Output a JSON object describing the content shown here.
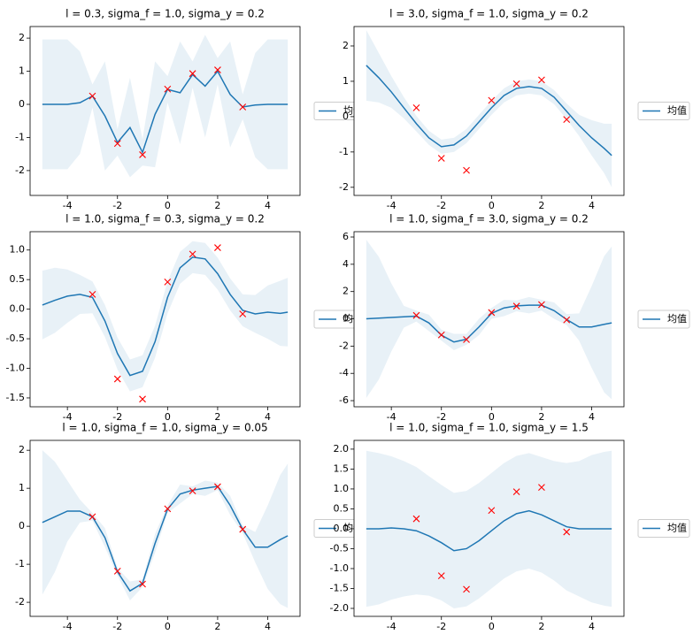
{
  "chart_data": [
    {
      "type": "line",
      "title": "l = 0.3, sigma_f = 1.0, sigma_y = 0.2",
      "x": [
        -5,
        -4.5,
        -4,
        -3.5,
        -3,
        -2.5,
        -2,
        -1.5,
        -1,
        -0.5,
        0,
        0.5,
        1,
        1.5,
        2,
        2.5,
        3,
        3.5,
        4,
        4.5,
        4.8
      ],
      "series": [
        {
          "name": "均值",
          "color": "#1f77b4",
          "values": [
            0,
            0,
            0,
            0.05,
            0.25,
            -0.35,
            -1.15,
            -0.7,
            -1.45,
            -0.3,
            0.45,
            0.35,
            0.9,
            0.55,
            1.0,
            0.3,
            -0.08,
            -0.02,
            0,
            0,
            0
          ]
        }
      ],
      "band": {
        "color": "#1f77b4",
        "upper": [
          1.96,
          1.96,
          1.96,
          1.6,
          0.6,
          1.3,
          -0.75,
          0.8,
          -1.05,
          1.3,
          0.85,
          1.9,
          1.3,
          2.1,
          1.4,
          1.9,
          0.3,
          1.55,
          1.96,
          1.96,
          1.96
        ],
        "lower": [
          -1.96,
          -1.96,
          -1.96,
          -1.5,
          -0.1,
          -2.0,
          -1.55,
          -2.2,
          -1.85,
          -1.9,
          0.05,
          -1.2,
          0.5,
          -1.0,
          0.6,
          -1.3,
          -0.45,
          -1.6,
          -1.96,
          -1.96,
          -1.96
        ]
      },
      "points": {
        "color": "#ff0000",
        "x": [
          -3,
          -2,
          -1,
          0,
          1,
          2,
          3
        ],
        "values": [
          0.25,
          -1.18,
          -1.52,
          0.46,
          0.93,
          1.04,
          -0.08
        ]
      },
      "xlim": [
        -5.49,
        5.29
      ],
      "ylim": [
        -2.75,
        2.35
      ],
      "xticks": [
        -4,
        -2,
        0,
        2,
        4
      ],
      "yticks": [
        -2,
        -1,
        0,
        1,
        2
      ],
      "legend": "outside-right"
    },
    {
      "type": "line",
      "title": "l = 3.0, sigma_f = 1.0, sigma_y = 0.2",
      "x": [
        -5,
        -4.5,
        -4,
        -3.5,
        -3,
        -2.5,
        -2,
        -1.5,
        -1,
        -0.5,
        0,
        0.5,
        1,
        1.5,
        2,
        2.5,
        3,
        3.5,
        4,
        4.5,
        4.8
      ],
      "series": [
        {
          "name": "均值",
          "color": "#1f77b4",
          "values": [
            1.45,
            1.1,
            0.7,
            0.25,
            -0.2,
            -0.6,
            -0.85,
            -0.8,
            -0.55,
            -0.15,
            0.25,
            0.6,
            0.8,
            0.85,
            0.8,
            0.55,
            0.15,
            -0.25,
            -0.6,
            -0.9,
            -1.1
          ]
        }
      ],
      "band": {
        "color": "#1f77b4",
        "upper": [
          2.45,
          1.8,
          1.15,
          0.55,
          0.02,
          -0.4,
          -0.65,
          -0.6,
          -0.35,
          0.05,
          0.45,
          0.8,
          1.0,
          1.05,
          1.0,
          0.75,
          0.37,
          0.05,
          -0.1,
          -0.2,
          -0.2
        ],
        "lower": [
          0.45,
          0.4,
          0.25,
          -0.05,
          -0.42,
          -0.8,
          -1.05,
          -1.0,
          -0.75,
          -0.35,
          0.05,
          0.4,
          0.6,
          0.65,
          0.6,
          0.35,
          -0.07,
          -0.55,
          -1.1,
          -1.6,
          -2.0
        ]
      },
      "points": {
        "color": "#ff0000",
        "x": [
          -3,
          -2,
          -1,
          0,
          1,
          2,
          3
        ],
        "values": [
          0.25,
          -1.18,
          -1.52,
          0.46,
          0.93,
          1.04,
          -0.08
        ]
      },
      "xlim": [
        -5.49,
        5.29
      ],
      "ylim": [
        -2.23,
        2.55
      ],
      "xticks": [
        -4,
        -2,
        0,
        2,
        4
      ],
      "yticks": [
        -2,
        -1,
        0,
        1,
        2
      ],
      "legend": "outside-right"
    },
    {
      "type": "line",
      "title": "l = 1.0, sigma_f = 0.3, sigma_y = 0.2",
      "x": [
        -5,
        -4.5,
        -4,
        -3.5,
        -3,
        -2.5,
        -2,
        -1.5,
        -1,
        -0.5,
        0,
        0.5,
        1,
        1.5,
        2,
        2.5,
        3,
        3.5,
        4,
        4.5,
        4.8
      ],
      "series": [
        {
          "name": "均值",
          "color": "#1f77b4",
          "values": [
            0.07,
            0.15,
            0.22,
            0.25,
            0.2,
            -0.2,
            -0.75,
            -1.12,
            -1.05,
            -0.55,
            0.2,
            0.7,
            0.88,
            0.85,
            0.6,
            0.25,
            -0.02,
            -0.08,
            -0.05,
            -0.07,
            -0.05
          ]
        }
      ],
      "band": {
        "color": "#1f77b4",
        "upper": [
          0.65,
          0.7,
          0.67,
          0.58,
          0.47,
          0.07,
          -0.48,
          -0.85,
          -0.78,
          -0.28,
          0.47,
          0.97,
          1.15,
          1.12,
          0.87,
          0.52,
          0.25,
          0.24,
          0.4,
          0.48,
          0.53
        ],
        "lower": [
          -0.51,
          -0.4,
          -0.23,
          -0.08,
          -0.07,
          -0.47,
          -1.02,
          -1.39,
          -1.32,
          -0.82,
          -0.07,
          0.43,
          0.61,
          0.58,
          0.33,
          -0.02,
          -0.29,
          -0.4,
          -0.5,
          -0.62,
          -0.63
        ]
      },
      "points": {
        "color": "#ff0000",
        "x": [
          -3,
          -2,
          -1,
          0,
          1,
          2,
          3
        ],
        "values": [
          0.25,
          -1.18,
          -1.52,
          0.46,
          0.93,
          1.04,
          -0.08
        ]
      },
      "xlim": [
        -5.49,
        5.29
      ],
      "ylim": [
        -1.65,
        1.31
      ],
      "xticks": [
        -4,
        -2,
        0,
        2,
        4
      ],
      "yticks": [
        -1.5,
        {
          "value": -1,
          "label": "-1.0"
        },
        -0.5,
        {
          "value": 0,
          "label": "0.0"
        },
        0.5,
        {
          "value": 1,
          "label": "1.0"
        }
      ],
      "legend": "outside-right"
    },
    {
      "type": "line",
      "title": "l = 1.0, sigma_f = 3.0, sigma_y = 0.2",
      "x": [
        -5,
        -4.5,
        -4,
        -3.5,
        -3,
        -2.5,
        -2,
        -1.5,
        -1,
        -0.5,
        0,
        0.5,
        1,
        1.5,
        2,
        2.5,
        3,
        3.5,
        4,
        4.5,
        4.8
      ],
      "series": [
        {
          "name": "均值",
          "color": "#1f77b4",
          "values": [
            0,
            0.05,
            0.1,
            0.15,
            0.2,
            -0.3,
            -1.2,
            -1.7,
            -1.5,
            -0.6,
            0.4,
            0.8,
            0.95,
            1.0,
            1.0,
            0.6,
            -0.05,
            -0.6,
            -0.6,
            -0.4,
            -0.3
          ]
        }
      ],
      "band": {
        "color": "#1f77b4",
        "upper": [
          5.8,
          4.55,
          2.6,
          0.95,
          0.6,
          0.3,
          -0.8,
          -1.1,
          -1.1,
          0,
          0.8,
          1.4,
          1.35,
          1.6,
          1.4,
          1.2,
          0.35,
          0.4,
          2.4,
          4.6,
          5.3
        ],
        "lower": [
          -5.8,
          -4.45,
          -2.4,
          -0.65,
          -0.2,
          -0.9,
          -1.6,
          -2.3,
          -1.9,
          -1.2,
          0,
          0.2,
          0.55,
          0.4,
          0.6,
          0,
          -0.45,
          -1.6,
          -3.6,
          -5.4,
          -5.9
        ]
      },
      "points": {
        "color": "#ff0000",
        "x": [
          -3,
          -2,
          -1,
          0,
          1,
          2,
          3
        ],
        "values": [
          0.25,
          -1.18,
          -1.52,
          0.46,
          0.93,
          1.04,
          -0.08
        ]
      },
      "xlim": [
        -5.49,
        5.29
      ],
      "ylim": [
        -6.45,
        6.39
      ],
      "xticks": [
        -4,
        -2,
        0,
        2,
        4
      ],
      "yticks": [
        -6,
        -4,
        -2,
        0,
        2,
        4,
        6
      ],
      "legend": "outside-right"
    },
    {
      "type": "line",
      "title": "l = 1.0, sigma_f = 1.0, sigma_y = 0.05",
      "x": [
        -5,
        -4.5,
        -4,
        -3.5,
        -3,
        -2.5,
        -2,
        -1.5,
        -1,
        -0.5,
        0,
        0.5,
        1,
        1.5,
        2,
        2.5,
        3,
        3.5,
        4,
        4.5,
        4.8
      ],
      "series": [
        {
          "name": "均值",
          "color": "#1f77b4",
          "values": [
            0.1,
            0.25,
            0.4,
            0.4,
            0.25,
            -0.3,
            -1.2,
            -1.7,
            -1.5,
            -0.45,
            0.45,
            0.85,
            0.95,
            1.0,
            1.05,
            0.55,
            -0.08,
            -0.55,
            -0.55,
            -0.35,
            -0.25
          ]
        }
      ],
      "band": {
        "color": "#1f77b4",
        "upper": [
          2.0,
          1.7,
          1.2,
          0.7,
          0.35,
          -0.05,
          -1.1,
          -1.45,
          -1.4,
          -0.2,
          0.55,
          1.1,
          1.05,
          1.2,
          1.15,
          0.8,
          0.02,
          -0.15,
          0.55,
          1.35,
          1.65
        ],
        "lower": [
          -1.8,
          -1.2,
          -0.4,
          0.1,
          0.15,
          -0.55,
          -1.3,
          -1.95,
          -1.6,
          -0.7,
          0.35,
          0.6,
          0.85,
          0.8,
          0.95,
          0.3,
          -0.18,
          -0.95,
          -1.65,
          -2.05,
          -2.15
        ]
      },
      "points": {
        "color": "#ff0000",
        "x": [
          -3,
          -2,
          -1,
          0,
          1,
          2,
          3
        ],
        "values": [
          0.25,
          -1.18,
          -1.52,
          0.46,
          0.93,
          1.04,
          -0.08
        ]
      },
      "xlim": [
        -5.49,
        5.29
      ],
      "ylim": [
        -2.37,
        2.26
      ],
      "xticks": [
        -4,
        -2,
        0,
        2,
        4
      ],
      "yticks": [
        -2,
        -1,
        0,
        1,
        2
      ],
      "legend": "outside-right"
    },
    {
      "type": "line",
      "title": "l = 1.0, sigma_f = 1.0, sigma_y = 1.5",
      "x": [
        -5,
        -4.5,
        -4,
        -3.5,
        -3,
        -2.5,
        -2,
        -1.5,
        -1,
        -0.5,
        0,
        0.5,
        1,
        1.5,
        2,
        2.5,
        3,
        3.5,
        4,
        4.5,
        4.8
      ],
      "series": [
        {
          "name": "均值",
          "color": "#1f77b4",
          "values": [
            0,
            0,
            0.02,
            0,
            -0.05,
            -0.18,
            -0.35,
            -0.55,
            -0.5,
            -0.3,
            -0.05,
            0.2,
            0.38,
            0.45,
            0.35,
            0.2,
            0.05,
            0,
            0,
            0,
            0
          ]
        }
      ],
      "band": {
        "color": "#1f77b4",
        "upper": [
          1.96,
          1.9,
          1.82,
          1.7,
          1.55,
          1.32,
          1.1,
          0.9,
          0.95,
          1.15,
          1.4,
          1.65,
          1.83,
          1.9,
          1.8,
          1.7,
          1.65,
          1.7,
          1.85,
          1.93,
          1.96
        ],
        "lower": [
          -1.96,
          -1.9,
          -1.78,
          -1.7,
          -1.65,
          -1.68,
          -1.8,
          -2.0,
          -1.95,
          -1.75,
          -1.5,
          -1.25,
          -1.07,
          -1.0,
          -1.1,
          -1.3,
          -1.55,
          -1.7,
          -1.85,
          -1.93,
          -1.96
        ]
      },
      "points": {
        "color": "#ff0000",
        "x": [
          -3,
          -2,
          -1,
          0,
          1,
          2,
          3
        ],
        "values": [
          0.25,
          -1.18,
          -1.52,
          0.46,
          0.93,
          1.04,
          -0.08
        ]
      },
      "xlim": [
        -5.49,
        5.29
      ],
      "ylim": [
        -2.2,
        2.22
      ],
      "xticks": [
        -4,
        -2,
        0,
        2,
        4
      ],
      "yticks": [
        {
          "value": -2,
          "label": "-2.0"
        },
        -1.5,
        {
          "value": -1,
          "label": "-1.0"
        },
        -0.5,
        {
          "value": 0,
          "label": "0.0"
        },
        0.5,
        {
          "value": 1,
          "label": "1.0"
        },
        1.5,
        {
          "value": 2,
          "label": "2.0"
        }
      ],
      "legend": "outside-right"
    }
  ]
}
